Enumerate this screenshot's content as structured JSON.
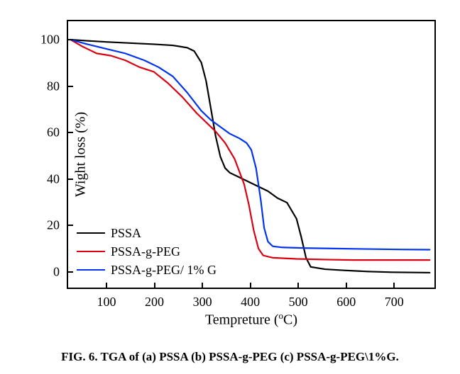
{
  "type": "line",
  "background_color": "#ffffff",
  "axes_border_color": "#000000",
  "axes_border_width": 2,
  "xlim": [
    20,
    790
  ],
  "ylim": [
    -8,
    108
  ],
  "xticks": [
    100,
    200,
    300,
    400,
    500,
    600,
    700
  ],
  "yticks": [
    0,
    20,
    40,
    60,
    80,
    100
  ],
  "xlabel_prefix": "Tempreture (",
  "xlabel_super": "o",
  "xlabel_suffix": "C)",
  "ylabel": "Wight loss (%)",
  "label_fontsize": 20,
  "tick_fontsize": 18,
  "line_width": 2.2,
  "legend_position": "lower-left-inside",
  "legend_fontsize": 18,
  "series": [
    {
      "name": "PSSA",
      "color": "#000000",
      "points": [
        [
          25,
          100
        ],
        [
          60,
          99.5
        ],
        [
          100,
          99
        ],
        [
          150,
          98.5
        ],
        [
          200,
          98
        ],
        [
          240,
          97.5
        ],
        [
          270,
          96.5
        ],
        [
          285,
          95
        ],
        [
          300,
          90
        ],
        [
          310,
          82
        ],
        [
          320,
          70
        ],
        [
          330,
          58
        ],
        [
          340,
          49
        ],
        [
          350,
          44
        ],
        [
          360,
          42
        ],
        [
          380,
          40
        ],
        [
          400,
          38
        ],
        [
          420,
          36
        ],
        [
          440,
          34
        ],
        [
          460,
          31
        ],
        [
          480,
          29
        ],
        [
          500,
          22
        ],
        [
          510,
          14
        ],
        [
          520,
          5
        ],
        [
          530,
          1
        ],
        [
          560,
          0
        ],
        [
          600,
          -0.5
        ],
        [
          650,
          -1
        ],
        [
          700,
          -1.3
        ],
        [
          780,
          -1.5
        ]
      ]
    },
    {
      "name": "PSSA-g-PEG",
      "color": "#d90012",
      "points": [
        [
          25,
          100
        ],
        [
          50,
          97
        ],
        [
          80,
          94
        ],
        [
          110,
          93
        ],
        [
          140,
          91
        ],
        [
          170,
          88
        ],
        [
          200,
          86
        ],
        [
          230,
          81
        ],
        [
          260,
          75
        ],
        [
          290,
          68
        ],
        [
          310,
          64
        ],
        [
          330,
          60
        ],
        [
          350,
          55
        ],
        [
          370,
          48
        ],
        [
          390,
          37
        ],
        [
          400,
          28
        ],
        [
          410,
          17
        ],
        [
          420,
          9
        ],
        [
          430,
          6
        ],
        [
          450,
          5
        ],
        [
          500,
          4.5
        ],
        [
          560,
          4.2
        ],
        [
          620,
          4
        ],
        [
          700,
          4
        ],
        [
          780,
          4
        ]
      ]
    },
    {
      "name": "PSSA-g-PEG/ 1% G",
      "color": "#0033ee",
      "points": [
        [
          25,
          100
        ],
        [
          60,
          98
        ],
        [
          100,
          96
        ],
        [
          140,
          94
        ],
        [
          180,
          91
        ],
        [
          210,
          88
        ],
        [
          240,
          84
        ],
        [
          270,
          77
        ],
        [
          300,
          69
        ],
        [
          320,
          65
        ],
        [
          340,
          62
        ],
        [
          360,
          59
        ],
        [
          380,
          57
        ],
        [
          395,
          55
        ],
        [
          405,
          52
        ],
        [
          415,
          44
        ],
        [
          425,
          30
        ],
        [
          432,
          18
        ],
        [
          440,
          12
        ],
        [
          450,
          10
        ],
        [
          470,
          9.5
        ],
        [
          520,
          9.2
        ],
        [
          580,
          9
        ],
        [
          650,
          8.8
        ],
        [
          720,
          8.6
        ],
        [
          780,
          8.5
        ]
      ]
    }
  ],
  "caption": "FIG. 6. TGA of (a) PSSA (b) PSSA-g-PEG (c) PSSA-g-PEG\\1%G."
}
